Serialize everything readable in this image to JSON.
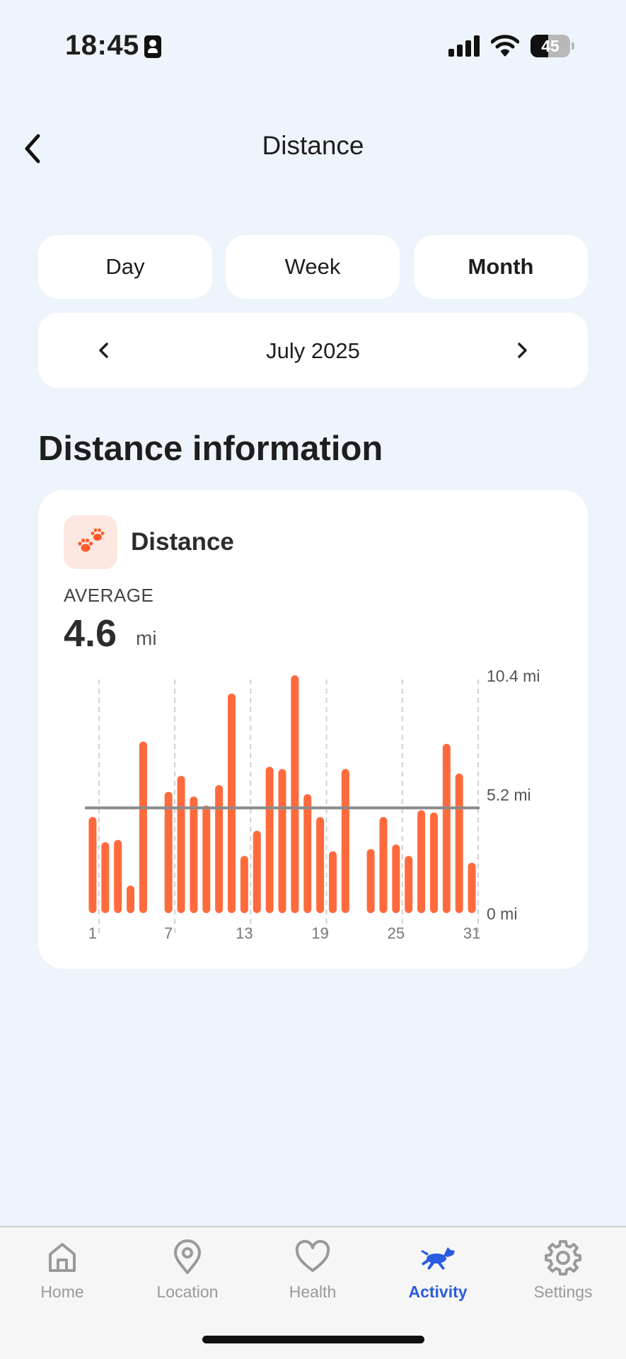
{
  "status_bar": {
    "time": "18:45",
    "battery_level": "45",
    "icons": [
      "contact-card-icon",
      "cellular-signal-icon",
      "wifi-icon",
      "battery-icon"
    ]
  },
  "header": {
    "title": "Distance",
    "back_icon": "chevron-left-icon"
  },
  "period_tabs": [
    {
      "label": "Day",
      "selected": false
    },
    {
      "label": "Week",
      "selected": false
    },
    {
      "label": "Month",
      "selected": true
    }
  ],
  "period_nav": {
    "label": "July 2025",
    "prev_icon": "chevron-left-icon",
    "next_icon": "chevron-right-icon"
  },
  "section_heading": "Distance information",
  "card": {
    "icon": "paw-prints-icon",
    "title": "Distance",
    "average_label": "AVERAGE",
    "average_value": "4.6",
    "average_unit": "mi"
  },
  "chart_data": {
    "type": "bar",
    "unit": "mi",
    "x": [
      1,
      2,
      3,
      4,
      5,
      6,
      7,
      8,
      9,
      10,
      11,
      12,
      13,
      14,
      15,
      16,
      17,
      18,
      19,
      20,
      21,
      22,
      23,
      24,
      25,
      26,
      27,
      28,
      29,
      30,
      31
    ],
    "values": [
      4.2,
      3.1,
      3.2,
      1.2,
      7.5,
      0,
      5.3,
      6.0,
      5.1,
      4.7,
      5.6,
      9.6,
      2.5,
      3.6,
      6.4,
      6.3,
      10.4,
      5.2,
      4.2,
      2.7,
      6.3,
      0,
      2.8,
      4.2,
      3.0,
      2.5,
      4.5,
      4.4,
      7.4,
      6.1,
      2.2
    ],
    "average": 4.6,
    "ylim": [
      0,
      10.4
    ],
    "y_ticks": [
      "0 mi",
      "5.2 mi",
      "10.4 mi"
    ],
    "x_ticks": [
      "1",
      "7",
      "13",
      "19",
      "25",
      "31"
    ],
    "x_tick_days": [
      1,
      7,
      13,
      19,
      25,
      31
    ],
    "bar_color": "#ff6a3d",
    "average_line_color": "#8a8a8a",
    "grid": "vertical dashed"
  },
  "bottom_nav": [
    {
      "label": "Home",
      "icon": "home-icon",
      "active": false
    },
    {
      "label": "Location",
      "icon": "location-pin-icon",
      "active": false
    },
    {
      "label": "Health",
      "icon": "heart-icon",
      "active": false
    },
    {
      "label": "Activity",
      "icon": "running-dog-icon",
      "active": true
    },
    {
      "label": "Settings",
      "icon": "gear-icon",
      "active": false
    }
  ],
  "colors": {
    "background": "#eef4fc",
    "accent": "#2a5ce0",
    "bar": "#ff6a3d"
  }
}
